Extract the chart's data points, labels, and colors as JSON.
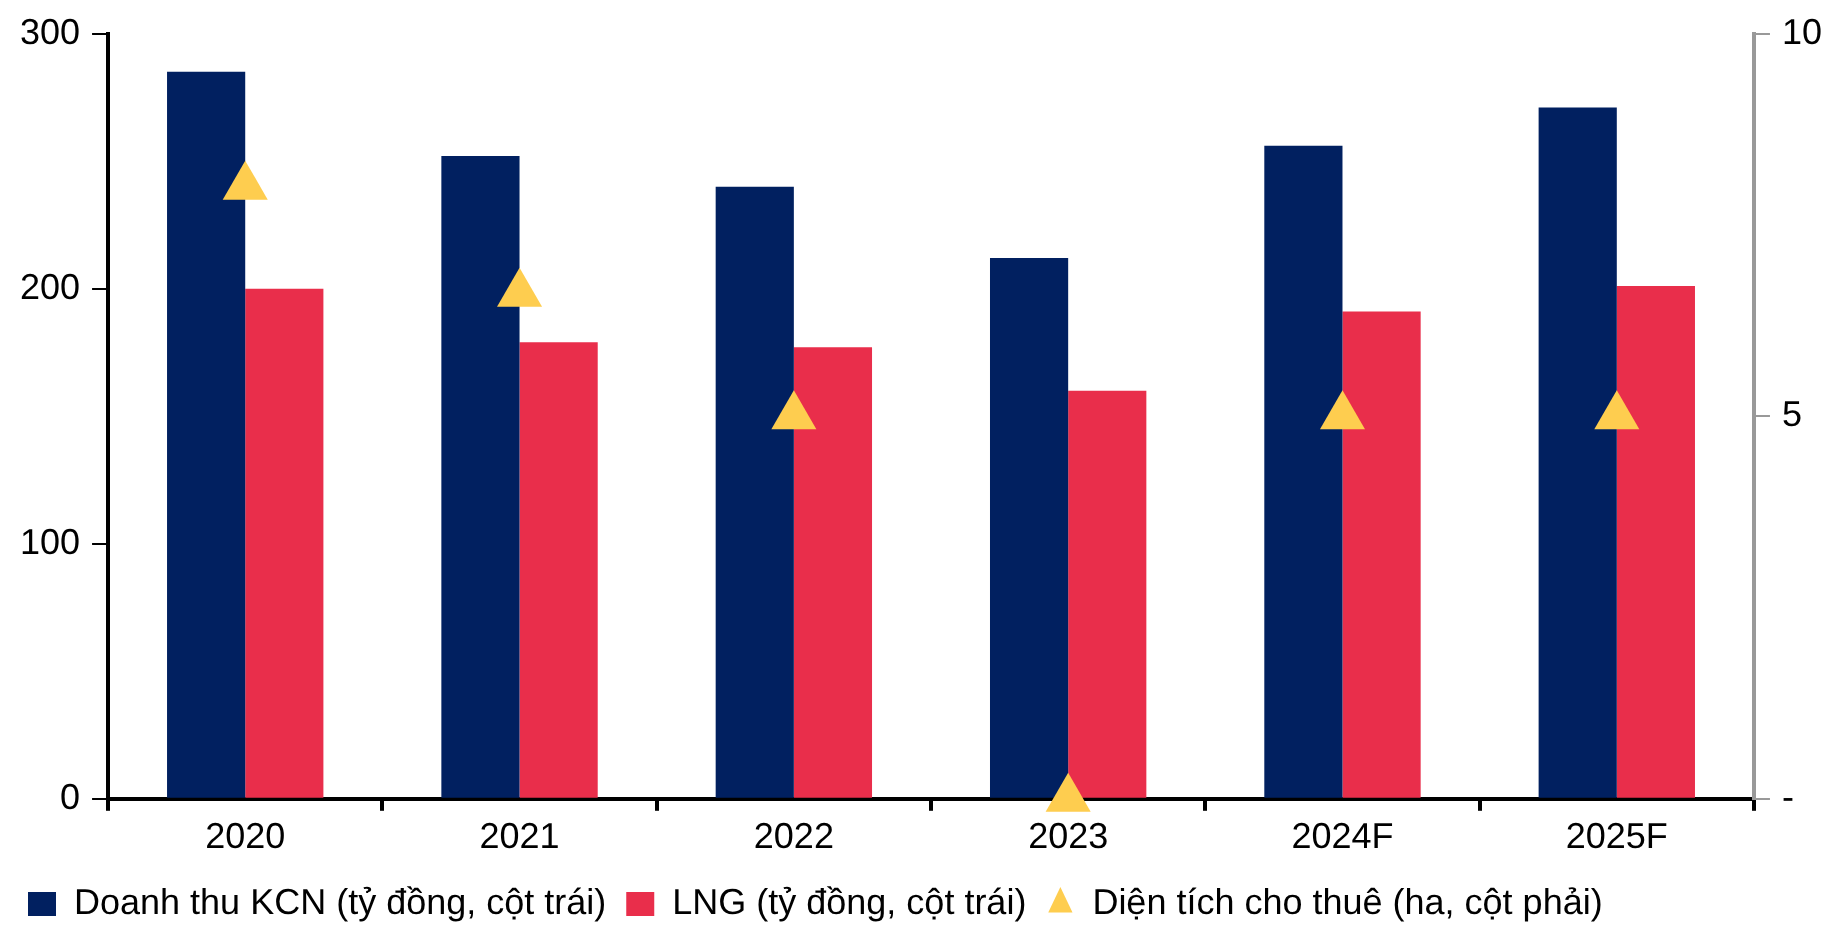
{
  "chart_data": {
    "type": "bar",
    "categories": [
      "2020",
      "2021",
      "2022",
      "2023",
      "2024F",
      "2025F"
    ],
    "series": [
      {
        "name": "Doanh thu KCN (tỷ đồng, cột trái)",
        "color": "#012060",
        "values": [
          285,
          252,
          240,
          212,
          256,
          271
        ]
      },
      {
        "name": "LNG (tỷ đồng, cột trái)",
        "color": "#e92e4b",
        "values": [
          200,
          179,
          177,
          160,
          191,
          201
        ]
      },
      {
        "name": "Diện tích cho thuê (ha, cột phải)",
        "type": "scatter",
        "axis": "y2",
        "marker": "triangle",
        "color": "#fecd4f",
        "values": [
          8,
          6.6,
          5,
          0,
          5,
          5
        ]
      }
    ],
    "ylim": [
      0,
      300
    ],
    "yticks": [
      0,
      100,
      200,
      300
    ],
    "y2lim": [
      0,
      10
    ],
    "y2ticks": [
      {
        "value": 0,
        "label": "-"
      },
      5,
      10
    ],
    "grid": false,
    "legend": "bottom"
  }
}
